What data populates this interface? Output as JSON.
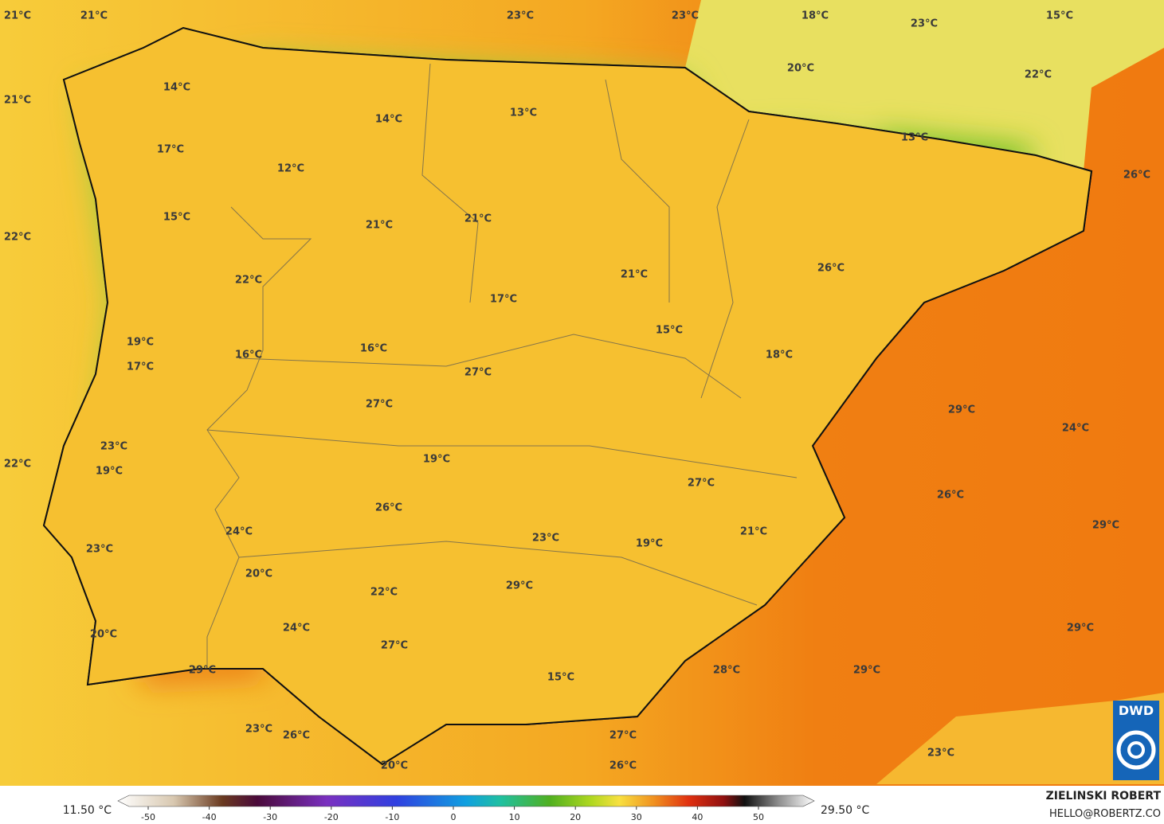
{
  "map": {
    "labels": [
      "21°C",
      "21°C",
      "23°C",
      "23°C",
      "18°C",
      "23°C",
      "15°C",
      "21°C",
      "14°C",
      "20°C",
      "22°C",
      "14°C",
      "13°C",
      "13°C",
      "17°C",
      "12°C",
      "26°C",
      "15°C",
      "21°C",
      "21°C",
      "22°C",
      "22°C",
      "26°C",
      "21°C",
      "17°C",
      "15°C",
      "19°C",
      "16°C",
      "16°C",
      "18°C",
      "17°C",
      "27°C",
      "27°C",
      "29°C",
      "23°C",
      "24°C",
      "22°C",
      "19°C",
      "19°C",
      "27°C",
      "26°C",
      "26°C",
      "29°C",
      "24°C",
      "21°C",
      "23°C",
      "19°C",
      "23°C",
      "20°C",
      "22°C",
      "29°C",
      "24°C",
      "20°C",
      "29°C",
      "27°C",
      "29°C",
      "28°C",
      "29°C",
      "15°C",
      "23°C",
      "26°C",
      "27°C",
      "23°C",
      "20°C",
      "26°C"
    ],
    "min_label": "11.50 °C",
    "max_label": "29.50 °C",
    "colorbar_ticks": [
      -50,
      -40,
      -30,
      -20,
      -10,
      0,
      10,
      20,
      30,
      40,
      50
    ],
    "author": "ZIELINSKI ROBERT",
    "contact": "HELLO@ROBERTZ.CO",
    "logo": "DWD"
  }
}
